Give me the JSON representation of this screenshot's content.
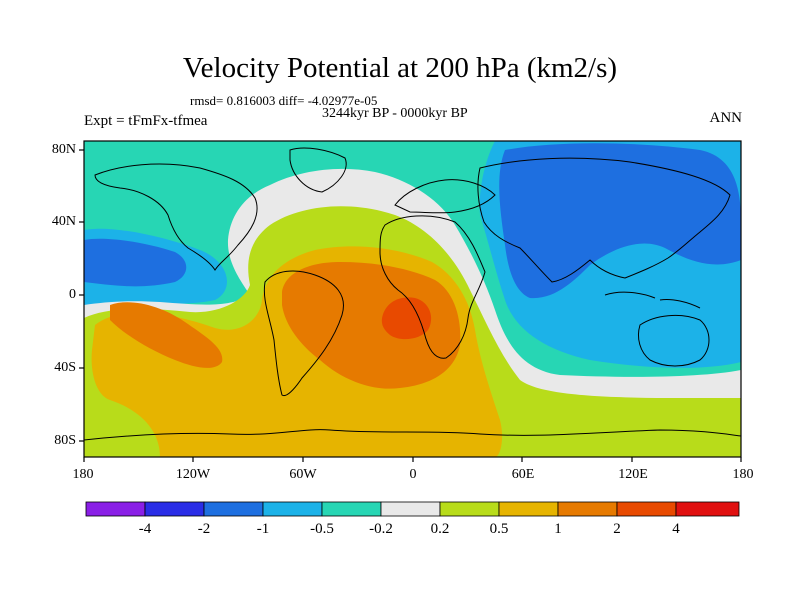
{
  "title": "Velocity Potential at 200 hPa (km2/s)",
  "stats_line": "rmsd= 0.816003 diff= -4.02977e-05",
  "period_line": "3244kyr BP - 0000kyr BP",
  "experiment_label": "Expt = tFmFx-tfmea",
  "season_label": "ANN",
  "y_axis_labels": [
    "80N",
    "40N",
    "0",
    "40S",
    "80S"
  ],
  "x_axis_labels": [
    "180",
    "120W",
    "60W",
    "0",
    "60E",
    "120E",
    "180"
  ],
  "colorbar": {
    "labels": [
      "-4",
      "-2",
      "-1",
      "-0.5",
      "-0.2",
      "0.2",
      "0.5",
      "1",
      "2",
      "4"
    ],
    "colors": [
      "#8a1fe6",
      "#2a2de6",
      "#1e6fe0",
      "#1cb2e8",
      "#27d6b4",
      "#e9e9e9",
      "#b8dc1a",
      "#e6b400",
      "#e67a00",
      "#e84a00",
      "#e01010"
    ]
  },
  "colors": {
    "neg_strong": "#1e6fe0",
    "neg_mid": "#1cb2e8",
    "neg_weak": "#27d6b4",
    "neutral": "#e9e9e9",
    "pos_weak": "#b8dc1a",
    "pos_mid": "#e6b400",
    "pos_strong": "#e67a00",
    "pos_max": "#e84a00"
  }
}
